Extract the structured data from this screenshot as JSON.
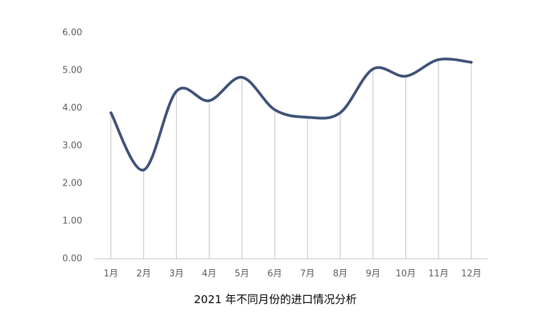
{
  "chart_data": {
    "type": "line",
    "title": "2021 年不同月份的进口情况分析",
    "categories": [
      "1月",
      "2月",
      "3月",
      "4月",
      "5月",
      "6月",
      "7月",
      "8月",
      "9月",
      "10月",
      "11月",
      "12月"
    ],
    "values": [
      3.88,
      2.36,
      4.45,
      4.2,
      4.82,
      3.96,
      3.76,
      3.88,
      5.04,
      4.85,
      5.29,
      5.22
    ],
    "color": "#3e5278",
    "smooth": true,
    "drop_lines": true,
    "ylim": [
      0,
      6
    ],
    "yticks": [
      {
        "value": 0,
        "label": "0.00"
      },
      {
        "value": 1,
        "label": "1.00"
      },
      {
        "value": 2,
        "label": "2.00"
      },
      {
        "value": 3,
        "label": "3.00"
      },
      {
        "value": 4,
        "label": "4.00"
      },
      {
        "value": 5,
        "label": "5.00"
      },
      {
        "value": 6,
        "label": "6.00"
      }
    ]
  }
}
